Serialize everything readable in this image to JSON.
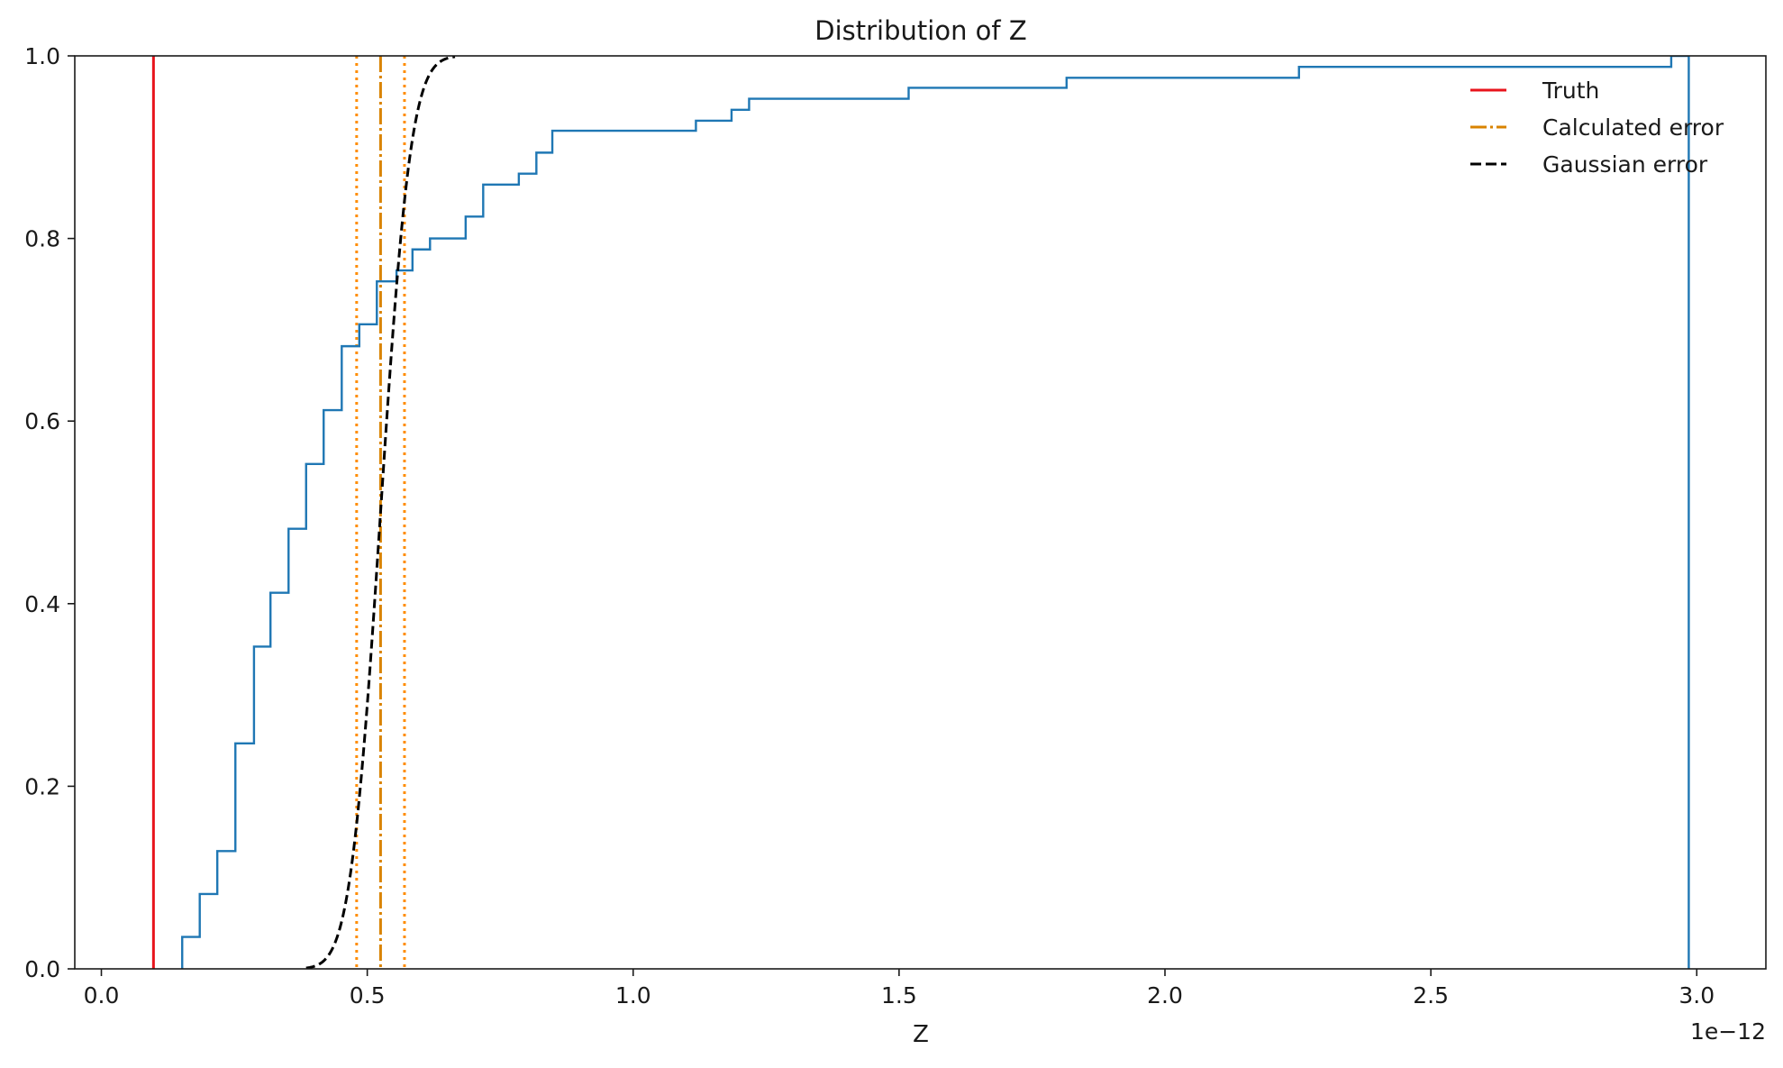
{
  "chart_data": {
    "type": "line",
    "title": "Distribution of Z",
    "xlabel": "Z",
    "ylabel": "",
    "x_scale_label": "1e−12",
    "xlim": [
      -0.05,
      3.13
    ],
    "ylim": [
      0.0,
      1.0
    ],
    "x_ticks": [
      0.0,
      0.5,
      1.0,
      1.5,
      2.0,
      2.5,
      3.0
    ],
    "x_tick_labels": [
      "0.0",
      "0.5",
      "1.0",
      "1.5",
      "2.0",
      "2.5",
      "3.0"
    ],
    "y_ticks": [
      0.0,
      0.2,
      0.4,
      0.6,
      0.8,
      1.0
    ],
    "y_tick_labels": [
      "0.0",
      "0.2",
      "0.4",
      "0.6",
      "0.8",
      "1.0"
    ],
    "grid": false,
    "legend_position": "top-right",
    "legend": [
      {
        "label": "Truth",
        "style": "solid",
        "color": "#e8141c"
      },
      {
        "label": "Calculated error",
        "style": "dashdot",
        "color": "#d98300"
      },
      {
        "label": "Gaussian error",
        "style": "dashed",
        "color": "#000000"
      }
    ],
    "series": [
      {
        "kind": "ecdf-step",
        "color": "#1f77b4",
        "x": [
          0.152,
          0.185,
          0.218,
          0.252,
          0.287,
          0.318,
          0.352,
          0.385,
          0.418,
          0.452,
          0.485,
          0.518,
          0.555,
          0.585,
          0.618,
          0.685,
          0.718,
          0.785,
          0.818,
          0.848,
          1.118,
          1.185,
          1.218,
          1.518,
          1.815,
          2.252,
          2.952,
          2.985
        ],
        "y": [
          0.035,
          0.082,
          0.129,
          0.247,
          0.353,
          0.412,
          0.482,
          0.553,
          0.612,
          0.682,
          0.706,
          0.753,
          0.765,
          0.788,
          0.8,
          0.824,
          0.859,
          0.871,
          0.894,
          0.918,
          0.929,
          0.941,
          0.953,
          0.965,
          0.976,
          0.988,
          1.0,
          1.0
        ],
        "start_x": 0.152,
        "end_x": 2.985
      },
      {
        "kind": "gaussian-cdf",
        "name": "Gaussian error",
        "color": "#000000",
        "mean": 0.525,
        "sigma": 0.045,
        "x_range": [
          0.385,
          0.665
        ]
      }
    ],
    "vlines": [
      {
        "name": "Truth",
        "x": 0.098,
        "color": "#e8141c",
        "style": "solid"
      },
      {
        "name": "Calculated error",
        "x": 0.525,
        "color": "#d98300",
        "style": "dashdot"
      },
      {
        "name": "Calculated error lower",
        "x": 0.48,
        "color": "#ff8c00",
        "style": "dotted"
      },
      {
        "name": "Calculated error upper",
        "x": 0.57,
        "color": "#ff8c00",
        "style": "dotted"
      }
    ]
  }
}
